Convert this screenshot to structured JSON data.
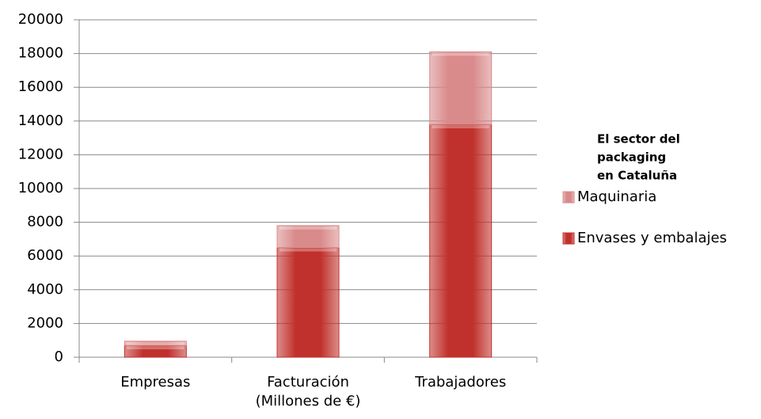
{
  "chart_data": {
    "type": "stacked_bar",
    "categories": [
      "Empresas",
      "Facturación (Millones de €)",
      "Trabajadores"
    ],
    "series": [
      {
        "name": "Envases y embalajes",
        "color": "#c0302c",
        "values": [
          700,
          6500,
          13800
        ]
      },
      {
        "name": "Maquinaria",
        "color": "#d98a8a",
        "values": [
          250,
          1300,
          4300
        ]
      }
    ],
    "legend_title": [
      "El sector del",
      "packaging",
      "en Cataluña"
    ],
    "ylim": [
      0,
      20000
    ],
    "yticks": [
      0,
      2000,
      4000,
      6000,
      8000,
      10000,
      12000,
      14000,
      16000,
      18000,
      20000
    ],
    "grid": true,
    "legend": "right"
  }
}
